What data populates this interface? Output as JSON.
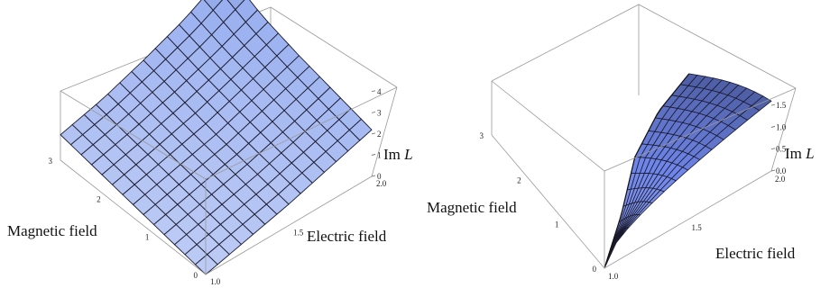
{
  "chart_data": [
    {
      "type": "surface3d",
      "xlabel": "Electric field",
      "ylabel": "Magnetic field",
      "zlabel_prefix": "Im ",
      "zlabel_var": "L",
      "xlim": [
        1.0,
        2.0
      ],
      "ylim": [
        0,
        3
      ],
      "zlim": [
        0,
        4.5
      ],
      "x_ticks": [
        "1.0",
        "1.5",
        "2.0"
      ],
      "y_ticks": [
        "0",
        "1",
        "2",
        "3"
      ],
      "z_ticks": [
        "0",
        "1",
        "2",
        "3",
        "4"
      ],
      "x": [
        1.0,
        1.25,
        1.5,
        1.75,
        2.0
      ],
      "y": [
        0,
        0.75,
        1.5,
        2.25,
        3.0
      ],
      "z": [
        [
          0.0,
          0.5,
          1.0,
          1.6,
          2.2
        ],
        [
          0.3,
          0.8,
          1.3,
          1.9,
          2.6
        ],
        [
          0.6,
          1.1,
          1.6,
          2.3,
          3.0
        ],
        [
          0.9,
          1.4,
          2.0,
          2.7,
          3.5
        ],
        [
          1.2,
          1.7,
          2.4,
          3.2,
          4.3
        ]
      ],
      "surface_color": "#9ab0f0",
      "grid": false
    },
    {
      "type": "surface3d",
      "xlabel": "Electric field",
      "ylabel": "Magnetic field",
      "zlabel_prefix": "Im ",
      "zlabel_var": "L",
      "xlim": [
        1.0,
        2.0
      ],
      "ylim": [
        0,
        3
      ],
      "zlim": [
        0,
        1.75
      ],
      "x_ticks": [
        "1.0",
        "1.5",
        "2.0"
      ],
      "y_ticks": [
        "0",
        "1",
        "2",
        "3"
      ],
      "z_ticks": [
        "0.0",
        "0.5",
        "1.0",
        "1.5"
      ],
      "x": [
        1.0,
        1.25,
        1.5,
        1.75,
        2.0
      ],
      "y_max_fraction_of_x": [
        0,
        0.22,
        0.47,
        0.63,
        0.73
      ],
      "z_peak": 1.6,
      "surface_color": "#6f86ea",
      "grid": false
    }
  ]
}
